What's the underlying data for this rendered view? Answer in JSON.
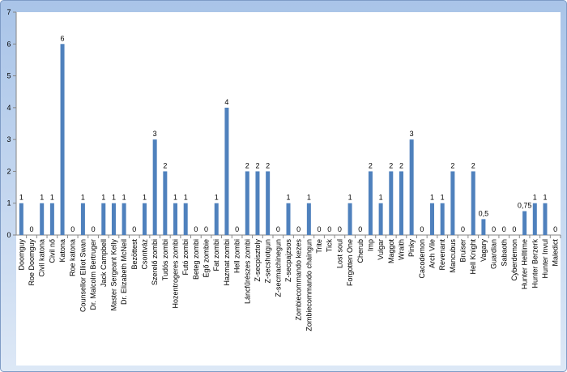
{
  "chart_data": {
    "type": "bar",
    "categories": [
      "Doomguy",
      "Roe Doomguy",
      "Civil katona",
      "Civil nő",
      "Katona",
      "Roe katona",
      "Counsellor Elliot Swan",
      "Dr. Malcolm Bertruger",
      "Jack Campbell",
      "Master Sergeant Kelly",
      "Dr. Elizabeth McNeil",
      "Bezöttest",
      "Csontváz",
      "Szerelő zombi",
      "Tudós zombi",
      "Hozentrogeres zombi",
      "Futó zombi",
      "Beteg zombi",
      "Égő zombie",
      "Fat zombi",
      "Hazmat zombi",
      "Hell zombi",
      "Láncfűrészes zombi",
      "Z-secpisztoly",
      "Z-secshotgun",
      "Z-secmachinegun",
      "Z-secpajzsos",
      "Zombiecommando kezes",
      "Zombiecommando chaingun",
      "Trite",
      "Tick",
      "Lost soul",
      "Forgotten One",
      "Cherub",
      "Imp",
      "Vulgar",
      "Maggot",
      "Wraith",
      "Pinky",
      "Cacodemon",
      "Arch Vile",
      "Revenant",
      "Mancubus",
      "Bruiser",
      "Hell Knight",
      "Vagary",
      "Guardian",
      "Sabaoth",
      "Cyberdemon",
      "Hunter Helltime",
      "Hunter Berzerk",
      "Hunter Invul",
      "Maledict"
    ],
    "values": [
      1,
      0,
      1,
      1,
      6,
      0,
      1,
      0,
      1,
      1,
      1,
      0,
      1,
      3,
      2,
      1,
      1,
      0,
      0,
      1,
      4,
      0,
      2,
      2,
      2,
      0,
      1,
      0,
      1,
      0,
      0,
      0,
      1,
      0,
      2,
      1,
      2,
      2,
      3,
      0,
      1,
      1,
      2,
      0,
      2,
      0.5,
      0,
      0,
      0,
      0.75,
      1,
      1,
      0
    ],
    "value_labels": [
      "1",
      "0",
      "1",
      "1",
      "6",
      "0",
      "1",
      "0",
      "1",
      "1",
      "1",
      "0",
      "1",
      "3",
      "2",
      "1",
      "1",
      "0",
      "0",
      "1",
      "4",
      "0",
      "2",
      "2",
      "2",
      "0",
      "1",
      "0",
      "1",
      "0",
      "0",
      "0",
      "1",
      "0",
      "2",
      "1",
      "2",
      "2",
      "3",
      "0",
      "1",
      "1",
      "2",
      "0",
      "2",
      "0,5",
      "0",
      "0",
      "0",
      "0,75",
      "1",
      "1",
      "0"
    ],
    "color": "#4f81bd",
    "ylim": [
      0,
      7
    ],
    "yticks": [
      0,
      1,
      2,
      3,
      4,
      5,
      6,
      7
    ]
  }
}
